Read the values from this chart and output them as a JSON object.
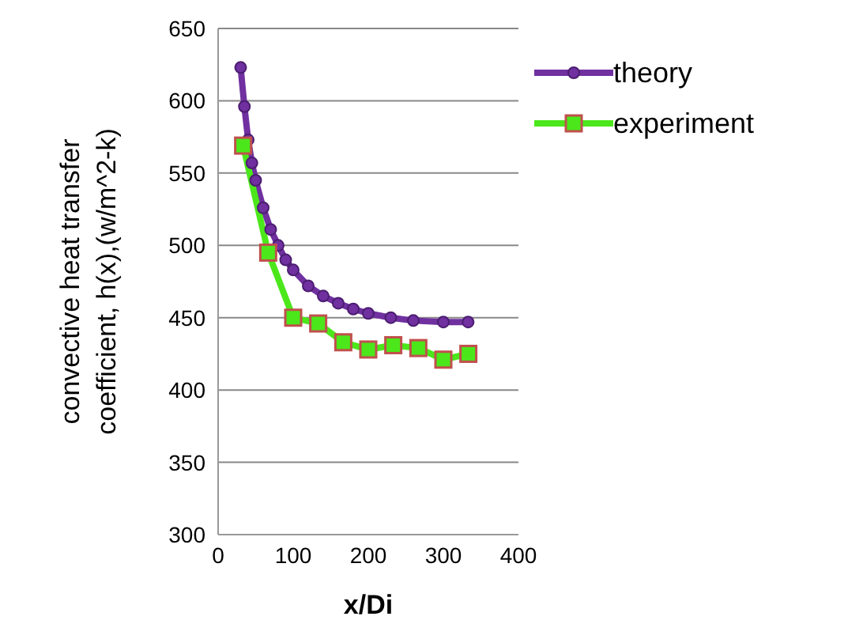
{
  "chart_data": {
    "type": "line",
    "xlabel": "x/Di",
    "ylabel": "convective heat transfer coefficient, h(x),(w/m^2-k)",
    "series": [
      {
        "name": "theory",
        "color": "#7030a0",
        "marker": "circle",
        "x": [
          30,
          35,
          40,
          45,
          50,
          60,
          70,
          80,
          90,
          100,
          120,
          140,
          160,
          180,
          200,
          230,
          260,
          300,
          333
        ],
        "values": [
          623,
          596,
          573,
          557,
          545,
          526,
          511,
          500,
          490,
          483,
          472,
          465,
          460,
          456,
          453,
          450,
          448,
          447,
          447
        ]
      },
      {
        "name": "experiment",
        "color": "#4be71b",
        "marker": "square",
        "x": [
          33.3,
          66.7,
          100,
          133.3,
          166.7,
          200,
          233.3,
          266.7,
          300,
          333.3
        ],
        "values": [
          569,
          495,
          450,
          446,
          433,
          428,
          431,
          429,
          421,
          425
        ]
      }
    ],
    "xlim": [
      0,
      400
    ],
    "xticks": [
      0,
      100,
      200,
      300,
      400
    ],
    "ylim": [
      300,
      650
    ],
    "yticks": [
      300,
      350,
      400,
      450,
      500,
      550,
      600,
      650
    ],
    "grid": "y",
    "legend": "top right"
  }
}
